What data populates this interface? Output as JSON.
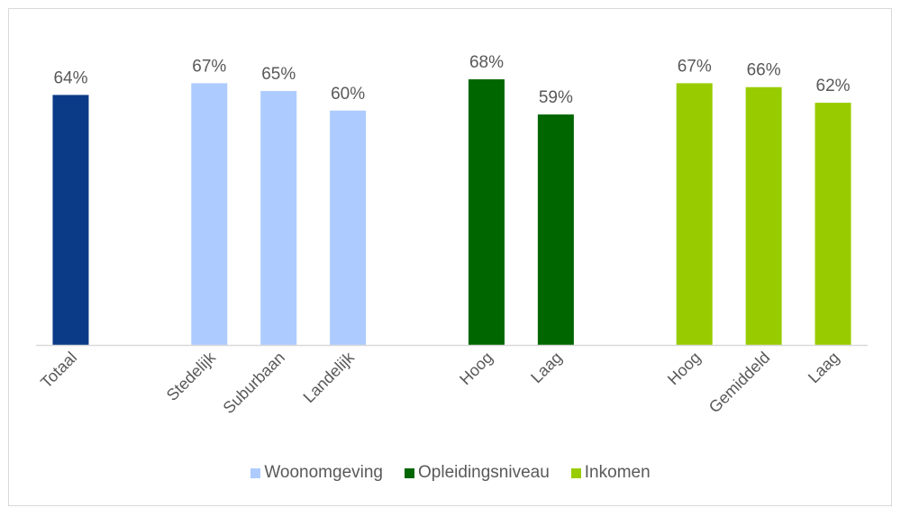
{
  "chart_data": {
    "type": "bar",
    "categories": [
      "Totaal",
      "Stedelijk",
      "Suburbaan",
      "Landelijk",
      "Hoog",
      "Laag",
      "Hoog",
      "Gemiddeld",
      "Laag"
    ],
    "groups": [
      "Totaal",
      "Woonomgeving",
      "Woonomgeving",
      "Woonomgeving",
      "Opleidingsniveau",
      "Opleidingsniveau",
      "Inkomen",
      "Inkomen",
      "Inkomen"
    ],
    "values": [
      64,
      67,
      65,
      60,
      68,
      59,
      67,
      66,
      62
    ],
    "data_labels": [
      "64%",
      "67%",
      "65%",
      "60%",
      "68%",
      "59%",
      "67%",
      "66%",
      "62%"
    ],
    "ylim": [
      0,
      86
    ],
    "grid": false,
    "legend_position": "bottom",
    "colors": {
      "Totaal": "#0B3A86",
      "Woonomgeving": "#ADCBFF",
      "Opleidingsniveau": "#006600",
      "Inkomen": "#99CC00"
    },
    "legend": [
      {
        "name": "Woonomgeving",
        "color": "#ADCBFF"
      },
      {
        "name": "Opleidingsniveau",
        "color": "#006600"
      },
      {
        "name": "Inkomen",
        "color": "#99CC00"
      }
    ]
  }
}
